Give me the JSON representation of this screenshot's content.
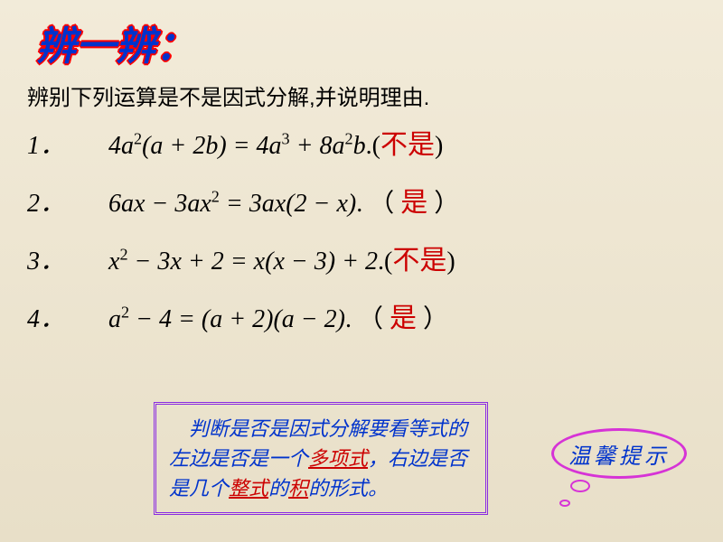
{
  "title": "辨一辨：",
  "subtitle": "辨别下列运算是不是因式分解,并说明理由.",
  "problems": [
    {
      "num": "1．",
      "lhs": "4a²(a + 2b)",
      "rhs": "4a³ + 8a²b",
      "answer": "不是",
      "lparen": ".(",
      "rparen": ")"
    },
    {
      "num": "2．",
      "lhs": "6ax − 3ax²",
      "rhs": "3ax(2 − x)",
      "answer": "是",
      "lparen": ". （ ",
      "rparen": " ）"
    },
    {
      "num": "3．",
      "lhs": "x² − 3x + 2",
      "rhs": "x(x − 3) + 2",
      "answer": "不是",
      "lparen": ".(",
      "rparen": ")"
    },
    {
      "num": "4．",
      "lhs": "a² − 4",
      "rhs": "(a + 2)(a − 2)",
      "answer": "是",
      "lparen": ".   （ ",
      "rparen": " ）"
    }
  ],
  "tip": {
    "line1_pre": "判断是否是因式分解要看等式的左边是否是一个",
    "hl1": "多项式",
    "mid": "，右边是否是几个",
    "hl2": "整式",
    "mid2": "的",
    "hl3": "积",
    "tail": "的形式。"
  },
  "bubble_label": "温馨提示",
  "colors": {
    "title_fill": "#0033cc",
    "title_outline": "#ff0000",
    "answer": "#cc0000",
    "tip_text": "#0033cc",
    "tip_highlight": "#cc0000",
    "bubble_border": "#d633d6",
    "tip_border": "#8a2be2",
    "background_top": "#f2ebd9",
    "background_bottom": "#e8dfc8"
  },
  "typography": {
    "title_fontsize": 44,
    "subtitle_fontsize": 24,
    "problem_fontsize": 28,
    "tip_fontsize": 22,
    "bubble_fontsize": 24
  }
}
